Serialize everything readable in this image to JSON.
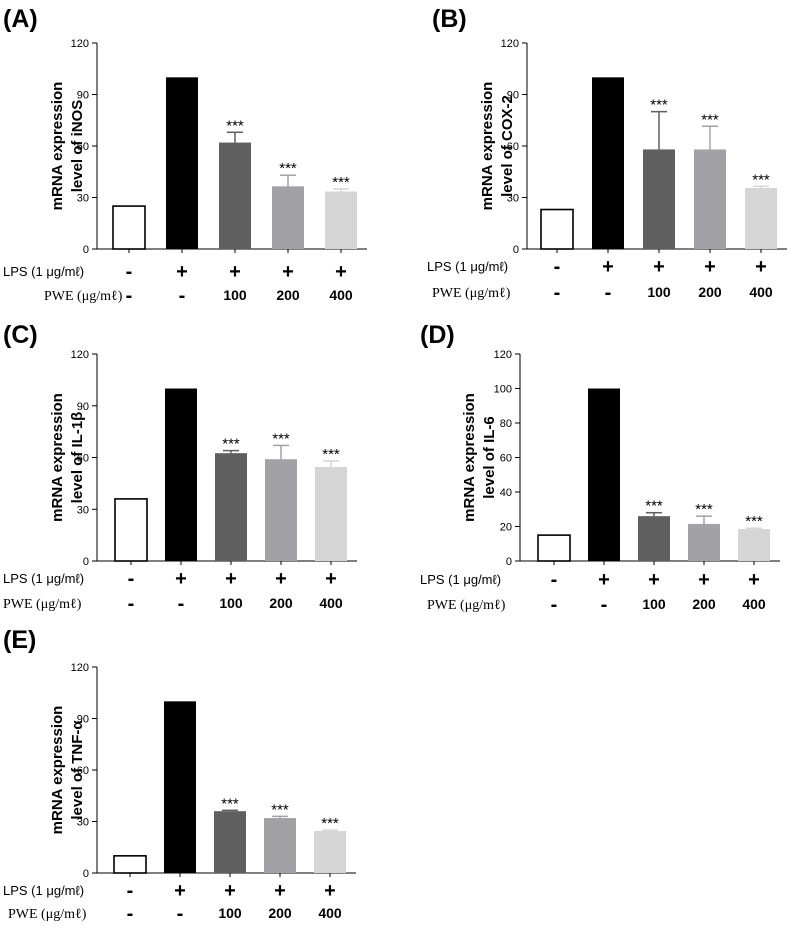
{
  "treatment_table": {
    "lps_label": "LPS (1 μg/mℓ)",
    "pwe_label": "PWE (μg/mℓ)",
    "lps": [
      "-",
      "+",
      "+",
      "+",
      "+"
    ],
    "pwe": [
      "-",
      "-",
      "100",
      "200",
      "400"
    ]
  },
  "colors": {
    "bars": [
      "#ffffff",
      "#000000",
      "#5f5f5f",
      "#a2a2a6",
      "#d5d5d5"
    ],
    "axis": "#000000"
  },
  "chart_data": [
    {
      "panel": "(A)",
      "type": "bar",
      "ylabel": [
        "mRNA expression",
        "level of iNOS"
      ],
      "ylim": [
        0,
        120
      ],
      "yticks": [
        0,
        30,
        60,
        90,
        120
      ],
      "values": [
        25,
        100,
        62,
        36.5,
        33.5
      ],
      "errors": [
        0,
        0,
        6,
        6.5,
        1.5
      ],
      "annotations": [
        "",
        "",
        "***",
        "***",
        "***"
      ]
    },
    {
      "panel": "(B)",
      "type": "bar",
      "ylabel": [
        "mRNA expression",
        "level of COX-2"
      ],
      "ylim": [
        0,
        120
      ],
      "yticks": [
        0,
        30,
        60,
        90,
        120
      ],
      "values": [
        23,
        100,
        58,
        58,
        35.5
      ],
      "errors": [
        0,
        0,
        22,
        13.5,
        1
      ],
      "annotations": [
        "",
        "",
        "***",
        "***",
        "***"
      ]
    },
    {
      "panel": "(C)",
      "type": "bar",
      "ylabel": [
        "mRNA expression",
        "level of IL-1β"
      ],
      "ylim": [
        0,
        120
      ],
      "yticks": [
        0,
        30,
        60,
        90,
        120
      ],
      "values": [
        36,
        100,
        62.5,
        59,
        54.5
      ],
      "errors": [
        0,
        0,
        1.5,
        8,
        3.5
      ],
      "annotations": [
        "",
        "",
        "***",
        "***",
        "***"
      ]
    },
    {
      "panel": "(D)",
      "type": "bar",
      "ylabel": [
        "mRNA expression",
        "level of IL-6"
      ],
      "ylim": [
        0,
        120
      ],
      "yticks": [
        0,
        20,
        40,
        60,
        80,
        100,
        120
      ],
      "values": [
        15,
        100,
        26,
        21.5,
        18.5
      ],
      "errors": [
        0,
        0,
        2,
        4.5,
        0.5
      ],
      "annotations": [
        "",
        "",
        "***",
        "***",
        "***"
      ]
    },
    {
      "panel": "(E)",
      "type": "bar",
      "ylabel": [
        "mRNA expression",
        "level of TNF-α"
      ],
      "ylim": [
        0,
        120
      ],
      "yticks": [
        0,
        30,
        60,
        90,
        120
      ],
      "values": [
        10,
        100,
        36,
        32,
        24.5
      ],
      "errors": [
        0,
        0,
        0.5,
        1,
        0.5
      ],
      "annotations": [
        "",
        "",
        "***",
        "***",
        "***"
      ]
    }
  ]
}
